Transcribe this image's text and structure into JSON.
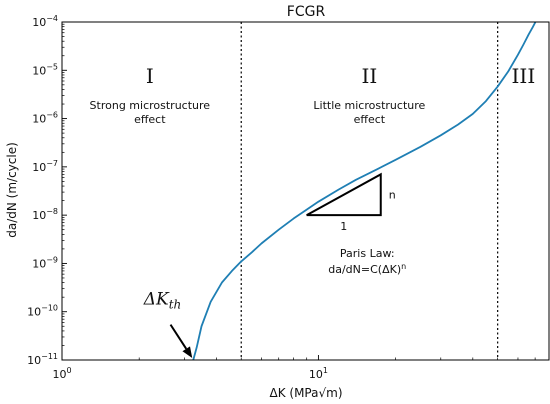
{
  "chart_data": {
    "type": "line",
    "title": "FCGR",
    "xlabel": "ΔK (MPa√m)",
    "ylabel": "da/dN (m/cycle)",
    "xscale": "log",
    "yscale": "log",
    "xlim": [
      1,
      80
    ],
    "ylim": [
      1e-11,
      0.0001
    ],
    "x_ticks": [
      {
        "value": 1,
        "base": "10",
        "exp": "0"
      },
      {
        "value": 10,
        "base": "10",
        "exp": "1"
      }
    ],
    "y_ticks": [
      {
        "value": 1e-11,
        "base": "10",
        "exp": "−11"
      },
      {
        "value": 1e-10,
        "base": "10",
        "exp": "−10"
      },
      {
        "value": 1e-09,
        "base": "10",
        "exp": "−9"
      },
      {
        "value": 1e-08,
        "base": "10",
        "exp": "−8"
      },
      {
        "value": 1e-07,
        "base": "10",
        "exp": "−7"
      },
      {
        "value": 1e-06,
        "base": "10",
        "exp": "−6"
      },
      {
        "value": 1e-05,
        "base": "10",
        "exp": "−5"
      },
      {
        "value": 0.0001,
        "base": "10",
        "exp": "−4"
      }
    ],
    "grid": false,
    "line_color": "#1f7fb4",
    "series": [
      {
        "x": [
          3.25,
          3.35,
          3.5,
          3.8,
          4.2,
          4.6,
          5.0,
          5.5,
          6.0,
          7.0,
          8.0,
          9.0,
          10.0,
          12.0,
          14.0,
          17.0,
          20.0,
          25.0,
          30.0,
          35.0,
          40.0,
          45.0,
          50.0,
          55.0,
          60.0,
          63.0,
          66.0,
          68.5,
          70.2
        ],
        "y": [
          1e-11,
          1.8e-11,
          5e-11,
          1.6e-10,
          4e-10,
          7e-10,
          1.1e-09,
          1.7e-09,
          2.6e-09,
          5e-09,
          8.5e-09,
          1.3e-08,
          1.9e-08,
          3.4e-08,
          5.4e-08,
          9e-08,
          1.4e-07,
          2.6e-07,
          4.5e-07,
          7.5e-07,
          1.25e-06,
          2.3e-06,
          4.6e-06,
          9.5e-06,
          2.1e-05,
          3.4e-05,
          5.5e-05,
          7.8e-05,
          0.0001
        ]
      }
    ],
    "vlines": [
      5,
      50
    ],
    "regions": [
      {
        "numeral": "I",
        "description": [
          "Strong microstructure",
          "effect"
        ],
        "x": 2.2
      },
      {
        "numeral": "II",
        "description": [
          "Little microstructure",
          "effect"
        ],
        "x": 15.8
      },
      {
        "numeral": "III",
        "description": [],
        "x": 63
      }
    ],
    "slope_triangle": {
      "x0": 9.0,
      "x1": 17.5,
      "y0": 1e-08,
      "y1": 7e-08,
      "run_label": "1",
      "rise_label": "n"
    },
    "paris_law": {
      "label": "Paris Law:",
      "equation_prefix": "da/dN=C(ΔK)",
      "equation_exp": "n",
      "x": 15.5
    },
    "threshold": {
      "symbol": "ΔK",
      "subscript": "th",
      "arrow_tip": [
        3.22,
        1.1e-11
      ],
      "arrow_tail": [
        2.65,
        5.4e-11
      ]
    }
  }
}
